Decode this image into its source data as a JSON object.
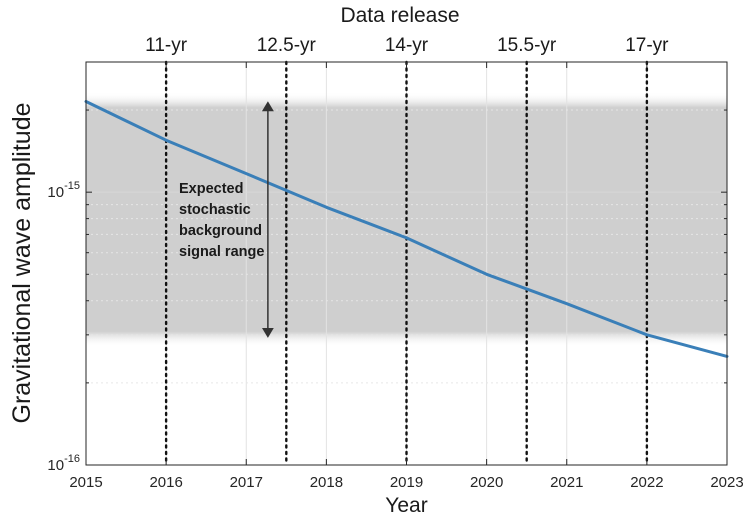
{
  "chart_data": {
    "type": "line",
    "xlabel": "Year",
    "ylabel": "Gravitational wave amplitude",
    "top_axis_label": "Data release",
    "xlim": [
      2015,
      2023
    ],
    "ylim": [
      1e-16,
      3e-15
    ],
    "yscale": "log",
    "x_ticks": [
      2015,
      2016,
      2017,
      2018,
      2019,
      2020,
      2021,
      2022,
      2023
    ],
    "x_tick_labels": [
      "2015",
      "2016",
      "2017",
      "2018",
      "2019",
      "2020",
      "2021",
      "2022",
      "2023"
    ],
    "y_ticks": [
      {
        "value": 1e-16,
        "base": "10",
        "exp": "-16"
      },
      {
        "value": 1e-15,
        "base": "10",
        "exp": "-15"
      }
    ],
    "series": [
      {
        "color": "#3a7fb8",
        "x": [
          2015,
          2016,
          2017,
          2018,
          2019,
          2020,
          2021,
          2022,
          2023
        ],
        "y": [
          2.15e-15,
          1.55e-15,
          1.17e-15,
          8.8e-16,
          6.8e-16,
          5e-16,
          3.9e-16,
          3e-16,
          2.5e-16
        ]
      }
    ],
    "band": {
      "y_low": 3e-16,
      "y_high": 2.1e-15,
      "color": "#cfcfcf"
    },
    "annotation": {
      "lines": [
        "Expected",
        "stochastic",
        "background",
        "signal range"
      ],
      "arrow_x": 2017.27,
      "arrow_y_low": 3e-16,
      "arrow_y_high": 2.1e-15
    },
    "releases": [
      {
        "x": 2016,
        "label": "11-yr"
      },
      {
        "x": 2017.5,
        "label": "12.5-yr"
      },
      {
        "x": 2019,
        "label": "14-yr"
      },
      {
        "x": 2020.5,
        "label": "15.5-yr"
      },
      {
        "x": 2022,
        "label": "17-yr"
      }
    ],
    "grid": true
  }
}
